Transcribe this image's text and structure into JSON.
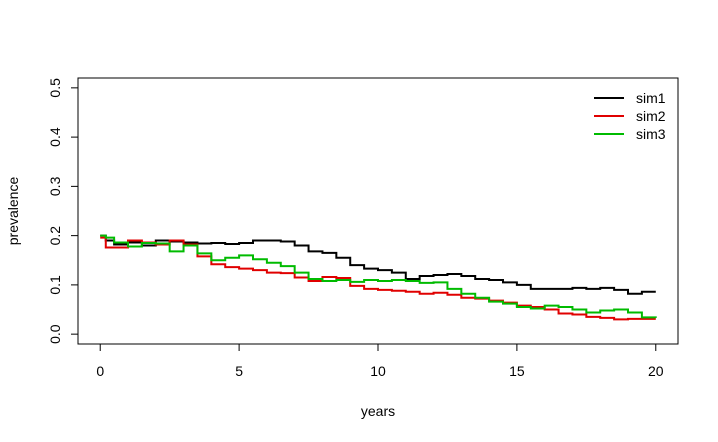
{
  "chart_data": {
    "type": "line",
    "xlabel": "years",
    "ylabel": "prevalence",
    "xlim": [
      -0.8,
      20.8
    ],
    "ylim": [
      -0.02,
      0.52
    ],
    "x_ticks": [
      0,
      5,
      10,
      15,
      20
    ],
    "x_tick_labels": [
      "0",
      "5",
      "10",
      "15",
      "20"
    ],
    "y_ticks": [
      0.0,
      0.1,
      0.2,
      0.3,
      0.4,
      0.5
    ],
    "y_tick_labels": [
      "0.0",
      "0.1",
      "0.2",
      "0.3",
      "0.4",
      "0.5"
    ],
    "grid": false,
    "legend_position": "top-right",
    "series": [
      {
        "name": "sim1",
        "color": "#000000",
        "points": [
          [
            0,
            0.2
          ],
          [
            0.2,
            0.19
          ],
          [
            0.5,
            0.182
          ],
          [
            1,
            0.186
          ],
          [
            1.5,
            0.18
          ],
          [
            2,
            0.19
          ],
          [
            2.5,
            0.188
          ],
          [
            3,
            0.186
          ],
          [
            3.5,
            0.184
          ],
          [
            4,
            0.185
          ],
          [
            4.5,
            0.183
          ],
          [
            5,
            0.185
          ],
          [
            5.5,
            0.19
          ],
          [
            6,
            0.19
          ],
          [
            6.5,
            0.188
          ],
          [
            7,
            0.18
          ],
          [
            7.5,
            0.168
          ],
          [
            8,
            0.165
          ],
          [
            8.5,
            0.155
          ],
          [
            9,
            0.14
          ],
          [
            9.5,
            0.133
          ],
          [
            10,
            0.13
          ],
          [
            10.5,
            0.125
          ],
          [
            11,
            0.112
          ],
          [
            11.5,
            0.118
          ],
          [
            12,
            0.12
          ],
          [
            12.5,
            0.122
          ],
          [
            13,
            0.118
          ],
          [
            13.5,
            0.112
          ],
          [
            14,
            0.11
          ],
          [
            14.5,
            0.105
          ],
          [
            15,
            0.1
          ],
          [
            15.5,
            0.092
          ],
          [
            16,
            0.092
          ],
          [
            16.5,
            0.092
          ],
          [
            17,
            0.094
          ],
          [
            17.5,
            0.092
          ],
          [
            18,
            0.094
          ],
          [
            18.5,
            0.09
          ],
          [
            19,
            0.082
          ],
          [
            19.5,
            0.086
          ],
          [
            20,
            0.086
          ]
        ]
      },
      {
        "name": "sim2",
        "color": "#e00000",
        "points": [
          [
            0,
            0.196
          ],
          [
            0.2,
            0.176
          ],
          [
            0.5,
            0.176
          ],
          [
            1,
            0.19
          ],
          [
            1.5,
            0.186
          ],
          [
            2,
            0.182
          ],
          [
            2.5,
            0.19
          ],
          [
            3,
            0.182
          ],
          [
            3.5,
            0.158
          ],
          [
            4,
            0.142
          ],
          [
            4.5,
            0.136
          ],
          [
            5,
            0.133
          ],
          [
            5.5,
            0.13
          ],
          [
            6,
            0.125
          ],
          [
            6.5,
            0.124
          ],
          [
            7,
            0.115
          ],
          [
            7.5,
            0.108
          ],
          [
            8,
            0.116
          ],
          [
            8.5,
            0.114
          ],
          [
            9,
            0.098
          ],
          [
            9.5,
            0.092
          ],
          [
            10,
            0.09
          ],
          [
            10.5,
            0.088
          ],
          [
            11,
            0.086
          ],
          [
            11.5,
            0.082
          ],
          [
            12,
            0.084
          ],
          [
            12.5,
            0.08
          ],
          [
            13,
            0.074
          ],
          [
            13.5,
            0.072
          ],
          [
            14,
            0.068
          ],
          [
            14.5,
            0.064
          ],
          [
            15,
            0.058
          ],
          [
            15.5,
            0.055
          ],
          [
            16,
            0.05
          ],
          [
            16.5,
            0.042
          ],
          [
            17,
            0.04
          ],
          [
            17.5,
            0.035
          ],
          [
            18,
            0.033
          ],
          [
            18.5,
            0.03
          ],
          [
            19,
            0.031
          ],
          [
            19.5,
            0.031
          ],
          [
            20,
            0.031
          ]
        ]
      },
      {
        "name": "sim3",
        "color": "#00bb00",
        "points": [
          [
            0,
            0.2
          ],
          [
            0.2,
            0.196
          ],
          [
            0.5,
            0.186
          ],
          [
            1,
            0.178
          ],
          [
            1.5,
            0.185
          ],
          [
            2,
            0.184
          ],
          [
            2.5,
            0.168
          ],
          [
            3,
            0.18
          ],
          [
            3.5,
            0.164
          ],
          [
            4,
            0.15
          ],
          [
            4.5,
            0.155
          ],
          [
            5,
            0.16
          ],
          [
            5.5,
            0.152
          ],
          [
            6,
            0.145
          ],
          [
            6.5,
            0.138
          ],
          [
            7,
            0.125
          ],
          [
            7.5,
            0.112
          ],
          [
            8,
            0.108
          ],
          [
            8.5,
            0.11
          ],
          [
            9,
            0.106
          ],
          [
            9.5,
            0.11
          ],
          [
            10,
            0.108
          ],
          [
            10.5,
            0.11
          ],
          [
            11,
            0.108
          ],
          [
            11.5,
            0.104
          ],
          [
            12,
            0.105
          ],
          [
            12.5,
            0.092
          ],
          [
            13,
            0.082
          ],
          [
            13.5,
            0.074
          ],
          [
            14,
            0.066
          ],
          [
            14.5,
            0.062
          ],
          [
            15,
            0.055
          ],
          [
            15.5,
            0.052
          ],
          [
            16,
            0.058
          ],
          [
            16.5,
            0.055
          ],
          [
            17,
            0.05
          ],
          [
            17.5,
            0.044
          ],
          [
            18,
            0.048
          ],
          [
            18.5,
            0.05
          ],
          [
            19,
            0.044
          ],
          [
            19.5,
            0.034
          ],
          [
            20,
            0.033
          ]
        ]
      }
    ]
  }
}
